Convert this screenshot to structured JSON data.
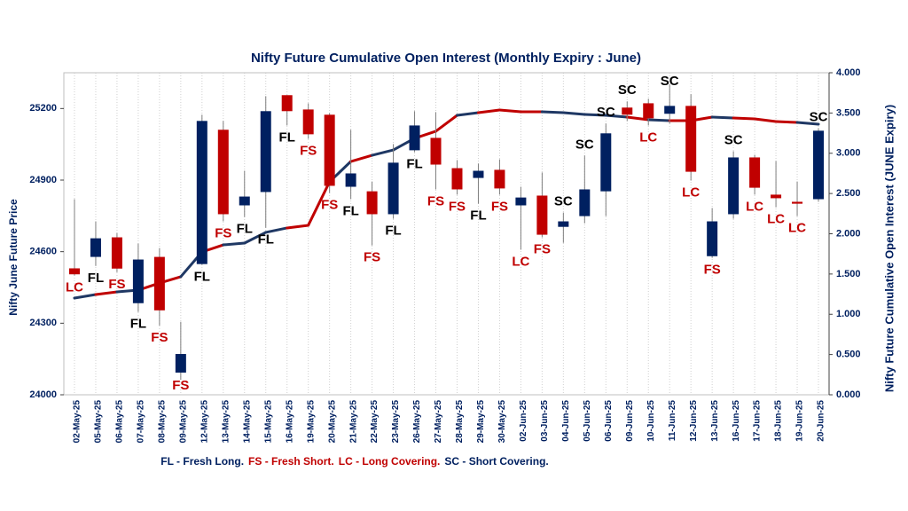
{
  "chart_data": {
    "type": "candlestick",
    "title": "Nifty Future Cumulative Open Interest (Monthly Expiry : June)",
    "ylabel": "Nifty June Future Price",
    "y2label": "Nifty Future Cumulative Open Interest (JUNE Expiry)",
    "categories": [
      "02-May-25",
      "05-May-25",
      "06-May-25",
      "07-May-25",
      "08-May-25",
      "09-May-25",
      "12-May-25",
      "13-May-25",
      "14-May-25",
      "15-May-25",
      "16-May-25",
      "19-May-25",
      "20-May-25",
      "21-May-25",
      "22-May-25",
      "23-May-25",
      "26-May-25",
      "27-May-25",
      "28-May-25",
      "29-May-25",
      "30-May-25",
      "02-Jun-25",
      "03-Jun-25",
      "04-Jun-25",
      "05-Jun-25",
      "06-Jun-25",
      "09-Jun-25",
      "10-Jun-25",
      "11-Jun-25",
      "12-Jun-25",
      "13-Jun-25",
      "16-Jun-25",
      "17-Jun-25",
      "18-Jun-25",
      "19-Jun-25",
      "20-Jun-25"
    ],
    "open": [
      24530,
      24578,
      24660,
      24384,
      24578,
      24093,
      24548,
      25111,
      24794,
      24850,
      25256,
      25196,
      25174,
      24872,
      24853,
      24757,
      25025,
      25077,
      24950,
      24909,
      24943,
      24794,
      24835,
      24704,
      24749,
      24853,
      25204,
      25222,
      25178,
      25211,
      24581,
      24757,
      24995,
      24839,
      24809,
      24820
    ],
    "high": [
      24820,
      24727,
      24678,
      24634,
      24615,
      24306,
      25174,
      25148,
      24939,
      25252,
      25256,
      25222,
      25181,
      25111,
      24894,
      25051,
      25189,
      25185,
      24984,
      24969,
      24987,
      24872,
      24932,
      24764,
      25003,
      25137,
      25230,
      25241,
      25301,
      25260,
      24783,
      25021,
      25006,
      24980,
      24894,
      25118
    ],
    "low": [
      24500,
      24540,
      24514,
      24347,
      24290,
      24063,
      24545,
      24727,
      24745,
      24700,
      25129,
      25073,
      24846,
      24820,
      24626,
      24738,
      25017,
      24861,
      24839,
      24801,
      24839,
      24608,
      24660,
      24637,
      24719,
      24749,
      25148,
      25129,
      25137,
      24898,
      24574,
      24738,
      24839,
      24786,
      24749,
      24809
    ],
    "close": [
      24505,
      24656,
      24529,
      24567,
      24354,
      24171,
      25148,
      24757,
      24831,
      25189,
      25189,
      25092,
      24876,
      24928,
      24757,
      24973,
      25129,
      24965,
      24861,
      24939,
      24865,
      24827,
      24671,
      24727,
      24861,
      25096,
      25174,
      25159,
      25211,
      24935,
      24727,
      24995,
      24868,
      24824,
      24801,
      25107
    ],
    "up_color": "#002060",
    "down_color": "#c00000",
    "oi": {
      "axis": "y2",
      "values": [
        1.201,
        1.245,
        1.278,
        1.3,
        1.388,
        1.466,
        1.774,
        1.862,
        1.884,
        2.017,
        2.072,
        2.105,
        2.645,
        2.898,
        2.975,
        3.041,
        3.185,
        3.273,
        3.471,
        3.504,
        3.537,
        3.515,
        3.515,
        3.504,
        3.482,
        3.471,
        3.449,
        3.416,
        3.405,
        3.405,
        3.449,
        3.438,
        3.427,
        3.394,
        3.383,
        3.361
      ]
    },
    "signals": [
      "LC",
      "FL",
      "FS",
      "FL",
      "FS",
      "FS",
      "FL",
      "FS",
      "FL",
      "FL",
      "FL",
      "FS",
      "FS",
      "FL",
      "FS",
      "FL",
      "FL",
      "FS",
      "FS",
      "FL",
      "FS",
      "LC",
      "FS",
      "SC",
      "SC",
      "SC",
      "SC",
      "LC",
      "SC",
      "LC",
      "FS",
      "SC",
      "LC",
      "LC",
      "LC",
      "SC"
    ],
    "signal_colors": {
      "FL": "#000000",
      "FS": "#c00000",
      "LC": "#c00000",
      "SC": "#000000"
    },
    "line_colors": {
      "FL": "#1f3864",
      "FS": "#c00000",
      "LC": "#c00000",
      "SC": "#1f3864"
    },
    "legend": [
      {
        "text": "FL - Fresh Long.",
        "color": "#002060"
      },
      {
        "text": "FS - Fresh Short.",
        "color": "#c00000"
      },
      {
        "text": "LC - Long Covering.",
        "color": "#c00000"
      },
      {
        "text": "SC - Short Covering.",
        "color": "#002060"
      }
    ],
    "ylim": [
      24000,
      25350
    ],
    "yticks": [
      24000,
      24300,
      24600,
      24900,
      25200
    ],
    "y2lim": [
      0,
      4
    ],
    "y2ticks": [
      {
        "value": 0,
        "label": "0.000"
      },
      {
        "value": 0.5,
        "label": "0.500"
      },
      {
        "value": 1,
        "label": "1.000"
      },
      {
        "value": 1.5,
        "label": "1.500"
      },
      {
        "value": 2,
        "label": "2.000"
      },
      {
        "value": 2.5,
        "label": "2.500"
      },
      {
        "value": 3,
        "label": "3.000"
      },
      {
        "value": 3.5,
        "label": "3.500"
      },
      {
        "value": 4,
        "label": "4.000"
      }
    ],
    "grid": true
  }
}
